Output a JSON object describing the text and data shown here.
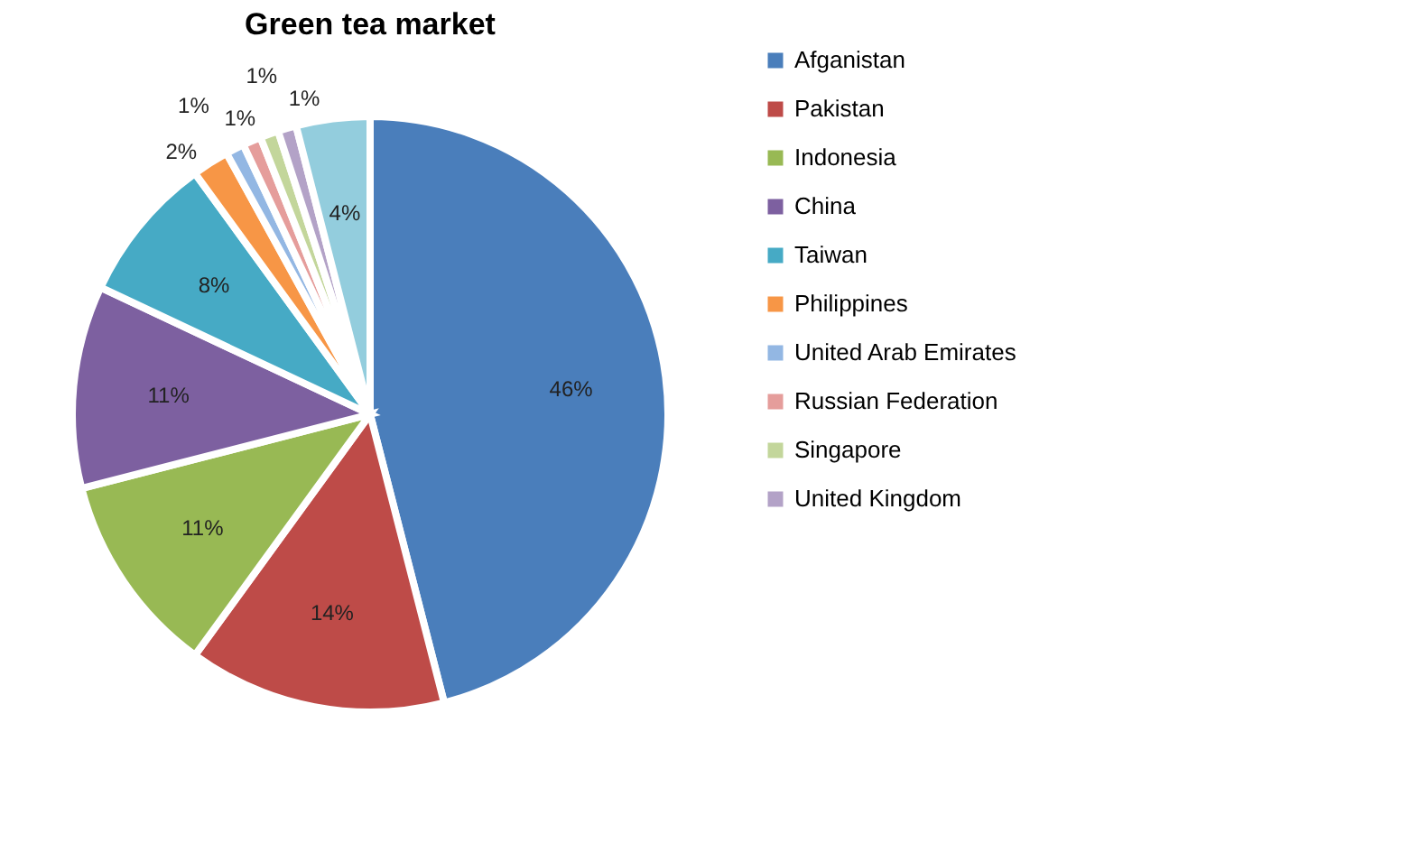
{
  "chart_data": {
    "type": "pie",
    "title": "Green tea market",
    "categories": [
      "Afganistan",
      "Pakistan",
      "Indonesia",
      "China",
      "Taiwan",
      "Philippines",
      "United Arab Emirates",
      "Russian Federation",
      "Singapore",
      "United Kingdom",
      null
    ],
    "values": [
      46,
      14,
      11,
      11,
      8,
      2,
      1,
      1,
      1,
      1,
      4
    ],
    "colors": [
      "#4a7ebb",
      "#be4b48",
      "#98b954",
      "#7d60a0",
      "#46aac5",
      "#f79646",
      "#93b7e3",
      "#e59d9b",
      "#c3d69b",
      "#b3a2c7",
      "#93cddd"
    ],
    "value_labels": [
      "46%",
      "14%",
      "11%",
      "11%",
      "8%",
      "2%",
      "1%",
      "1%",
      "1%",
      "1%",
      "4%"
    ],
    "legend": "right"
  }
}
